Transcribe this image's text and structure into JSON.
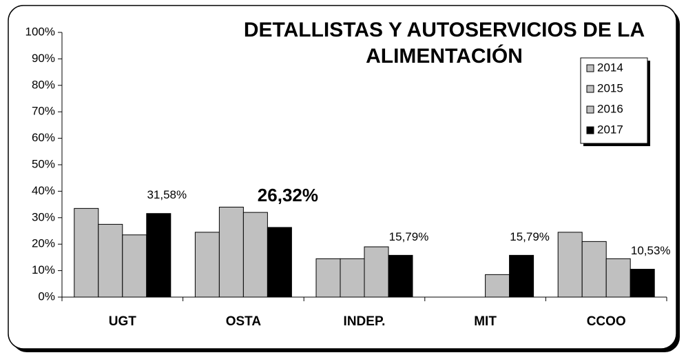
{
  "chart_data": {
    "type": "bar",
    "title": [
      "DETALLISTAS Y AUTOSERVICIOS DE LA",
      "ALIMENTACIÓN"
    ],
    "categories": [
      "UGT",
      "OSTA",
      "INDEP.",
      "MIT",
      "CCOO"
    ],
    "series": [
      {
        "name": "2014",
        "color": "#c0c0c0",
        "values": [
          33.5,
          24.5,
          14.5,
          0,
          24.5
        ]
      },
      {
        "name": "2015",
        "color": "#c0c0c0",
        "values": [
          27.5,
          34,
          14.5,
          0,
          21
        ]
      },
      {
        "name": "2016",
        "color": "#c0c0c0",
        "values": [
          23.5,
          32,
          19,
          8.5,
          14.5
        ]
      },
      {
        "name": "2017",
        "color": "#000000",
        "values": [
          31.58,
          26.32,
          15.79,
          15.79,
          10.53
        ],
        "value_labels": [
          "31,58%",
          "26,32%",
          "15,79%",
          "15,79%",
          "10,53%"
        ]
      }
    ],
    "ylim": [
      0,
      100
    ],
    "yticks": [
      {
        "value": 0,
        "label": "0%"
      },
      {
        "value": 10,
        "label": "10%"
      },
      {
        "value": 20,
        "label": "20%"
      },
      {
        "value": 30,
        "label": "30%"
      },
      {
        "value": 40,
        "label": "40%"
      },
      {
        "value": 50,
        "label": "50%"
      },
      {
        "value": 60,
        "label": "60%"
      },
      {
        "value": 70,
        "label": "70%"
      },
      {
        "value": 80,
        "label": "80%"
      },
      {
        "value": 90,
        "label": "90%"
      },
      {
        "value": 100,
        "label": "100%"
      }
    ],
    "grid": false,
    "legend": "top-right"
  }
}
